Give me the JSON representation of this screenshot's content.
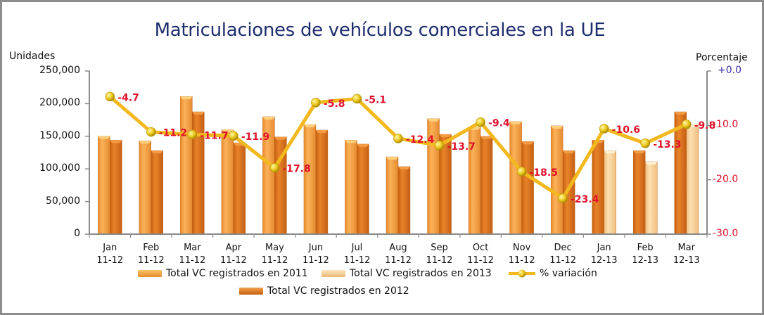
{
  "chart_data": {
    "type": "bar",
    "title": "Matriculaciones de vehículos comerciales en la UE",
    "ylabel": "Unidades",
    "y2label": "Porcentaje",
    "ylim": [
      0,
      250000
    ],
    "y2lim": [
      -30,
      0
    ],
    "yticks": [
      "250,000",
      "200,000",
      "150,000",
      "100,000",
      "50,000",
      "0"
    ],
    "y2ticks": [
      "+0.0",
      "-10.0",
      "-20.0",
      "-30.0"
    ],
    "categories": [
      {
        "month": "Jan",
        "period": "11-12"
      },
      {
        "month": "Feb",
        "period": "11-12"
      },
      {
        "month": "Mar",
        "period": "11-12"
      },
      {
        "month": "Apr",
        "period": "11-12"
      },
      {
        "month": "May",
        "period": "11-12"
      },
      {
        "month": "Jun",
        "period": "11-12"
      },
      {
        "month": "Jul",
        "period": "11-12"
      },
      {
        "month": "Aug",
        "period": "11-12"
      },
      {
        "month": "Sep",
        "period": "11-12"
      },
      {
        "month": "Oct",
        "period": "11-12"
      },
      {
        "month": "Nov",
        "period": "11-12"
      },
      {
        "month": "Dec",
        "period": "11-12"
      },
      {
        "month": "Jan",
        "period": "12-13"
      },
      {
        "month": "Feb",
        "period": "12-13"
      },
      {
        "month": "Mar",
        "period": "12-13"
      }
    ],
    "series": [
      {
        "name": "Total VC registrados en 2011",
        "color": "#f5a043",
        "values": [
          150000,
          143000,
          211000,
          160000,
          180000,
          168000,
          144000,
          118500,
          177000,
          164000,
          172500,
          166000,
          null,
          null,
          null
        ]
      },
      {
        "name": "Total VC registrados en 2012",
        "color": "#d9731c",
        "values": [
          144000,
          128000,
          187500,
          140000,
          149000,
          159500,
          138000,
          103500,
          153000,
          150000,
          142000,
          128000,
          144000,
          128000,
          187500
        ]
      },
      {
        "name": "Total VC registrados en 2013",
        "color": "#f8cf92",
        "values": [
          null,
          null,
          null,
          null,
          null,
          null,
          null,
          null,
          null,
          null,
          null,
          null,
          128000,
          111000,
          168000
        ]
      },
      {
        "name": "% variación",
        "type": "line",
        "axis": "right",
        "color": "#f2b81e",
        "values": [
          -4.7,
          -11.2,
          -11.7,
          -11.9,
          -17.8,
          -5.8,
          -5.1,
          -12.4,
          -13.7,
          -9.4,
          -18.5,
          -23.4,
          -10.6,
          -13.3,
          -9.8
        ],
        "labels": [
          "-4.7",
          "-11.2",
          "-11.7",
          "-11.9",
          "-17.8",
          "-5.8",
          "-5.1",
          "-12.4",
          "-13.7",
          "-9.4",
          "-18.5",
          "-23.4",
          "-10.6",
          "-13.3",
          "-9.8"
        ]
      }
    ],
    "legend": [
      {
        "label": "Total VC registrados en 2011",
        "kind": "bar",
        "color": "#f5a043"
      },
      {
        "label": "Total VC registrados en 2013",
        "kind": "bar",
        "color": "#f8cf92"
      },
      {
        "label": "% variación",
        "kind": "line",
        "color": "#f2b81e"
      },
      {
        "label": "Total VC registrados en 2012",
        "kind": "bar",
        "color": "#d9731c"
      }
    ],
    "legend_position": "bottom",
    "grid": false
  },
  "colors": {
    "title": "#1f2e6e",
    "label_red": "#e0102a",
    "zero_tick": "#3a2fb0",
    "axis": "#8a8a8a"
  }
}
